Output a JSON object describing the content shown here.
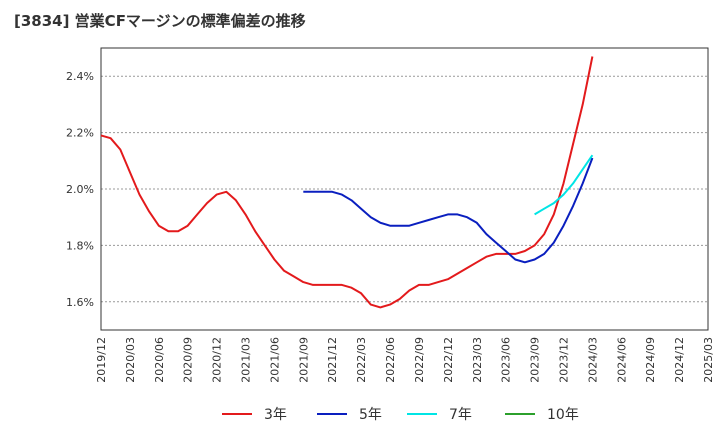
{
  "chart_data": {
    "type": "line",
    "title": "[3834]  営業CFマージンの標準偏差の推移",
    "xlabel": "",
    "ylabel": "",
    "ylim": [
      1.5,
      2.5
    ],
    "y_ticks": [
      "1.6%",
      "1.8%",
      "2.0%",
      "2.2%",
      "2.4%"
    ],
    "y_tick_values": [
      1.6,
      1.8,
      2.0,
      2.2,
      2.4
    ],
    "x_range": [
      "2019-12",
      "2025-03"
    ],
    "x_ticks": [
      "2019/12",
      "2020/03",
      "2020/06",
      "2020/09",
      "2020/12",
      "2021/03",
      "2021/06",
      "2021/09",
      "2021/12",
      "2022/03",
      "2022/06",
      "2022/09",
      "2022/12",
      "2023/03",
      "2023/06",
      "2023/09",
      "2023/12",
      "2024/03",
      "2024/06",
      "2024/09",
      "2024/12",
      "2025/03"
    ],
    "grid": true,
    "legend_position": "bottom",
    "series": [
      {
        "name": "3年",
        "color": "#e31a1c",
        "points": [
          [
            "2019-12",
            2.19
          ],
          [
            "2020-01",
            2.18
          ],
          [
            "2020-02",
            2.14
          ],
          [
            "2020-03",
            2.06
          ],
          [
            "2020-04",
            1.98
          ],
          [
            "2020-05",
            1.92
          ],
          [
            "2020-06",
            1.87
          ],
          [
            "2020-07",
            1.85
          ],
          [
            "2020-08",
            1.85
          ],
          [
            "2020-09",
            1.87
          ],
          [
            "2020-10",
            1.91
          ],
          [
            "2020-11",
            1.95
          ],
          [
            "2020-12",
            1.98
          ],
          [
            "2021-01",
            1.99
          ],
          [
            "2021-02",
            1.96
          ],
          [
            "2021-03",
            1.91
          ],
          [
            "2021-04",
            1.85
          ],
          [
            "2021-05",
            1.8
          ],
          [
            "2021-06",
            1.75
          ],
          [
            "2021-07",
            1.71
          ],
          [
            "2021-08",
            1.69
          ],
          [
            "2021-09",
            1.67
          ],
          [
            "2021-10",
            1.66
          ],
          [
            "2021-11",
            1.66
          ],
          [
            "2021-12",
            1.66
          ],
          [
            "2022-01",
            1.66
          ],
          [
            "2022-02",
            1.65
          ],
          [
            "2022-03",
            1.63
          ],
          [
            "2022-04",
            1.59
          ],
          [
            "2022-05",
            1.58
          ],
          [
            "2022-06",
            1.59
          ],
          [
            "2022-07",
            1.61
          ],
          [
            "2022-08",
            1.64
          ],
          [
            "2022-09",
            1.66
          ],
          [
            "2022-10",
            1.66
          ],
          [
            "2022-11",
            1.67
          ],
          [
            "2022-12",
            1.68
          ],
          [
            "2023-01",
            1.7
          ],
          [
            "2023-02",
            1.72
          ],
          [
            "2023-03",
            1.74
          ],
          [
            "2023-04",
            1.76
          ],
          [
            "2023-05",
            1.77
          ],
          [
            "2023-06",
            1.77
          ],
          [
            "2023-07",
            1.77
          ],
          [
            "2023-08",
            1.78
          ],
          [
            "2023-09",
            1.8
          ],
          [
            "2023-10",
            1.84
          ],
          [
            "2023-11",
            1.91
          ],
          [
            "2023-12",
            2.02
          ],
          [
            "2024-01",
            2.16
          ],
          [
            "2024-02",
            2.3
          ],
          [
            "2024-03",
            2.47
          ]
        ]
      },
      {
        "name": "5年",
        "color": "#0a1fbf",
        "points": [
          [
            "2021-09",
            1.99
          ],
          [
            "2021-10",
            1.99
          ],
          [
            "2021-11",
            1.99
          ],
          [
            "2021-12",
            1.99
          ],
          [
            "2022-01",
            1.98
          ],
          [
            "2022-02",
            1.96
          ],
          [
            "2022-03",
            1.93
          ],
          [
            "2022-04",
            1.9
          ],
          [
            "2022-05",
            1.88
          ],
          [
            "2022-06",
            1.87
          ],
          [
            "2022-07",
            1.87
          ],
          [
            "2022-08",
            1.87
          ],
          [
            "2022-09",
            1.88
          ],
          [
            "2022-10",
            1.89
          ],
          [
            "2022-11",
            1.9
          ],
          [
            "2022-12",
            1.91
          ],
          [
            "2023-01",
            1.91
          ],
          [
            "2023-02",
            1.9
          ],
          [
            "2023-03",
            1.88
          ],
          [
            "2023-04",
            1.84
          ],
          [
            "2023-05",
            1.81
          ],
          [
            "2023-06",
            1.78
          ],
          [
            "2023-07",
            1.75
          ],
          [
            "2023-08",
            1.74
          ],
          [
            "2023-09",
            1.75
          ],
          [
            "2023-10",
            1.77
          ],
          [
            "2023-11",
            1.81
          ],
          [
            "2023-12",
            1.87
          ],
          [
            "2024-01",
            1.94
          ],
          [
            "2024-02",
            2.02
          ],
          [
            "2024-03",
            2.11
          ]
        ]
      },
      {
        "name": "7年",
        "color": "#00e5e5",
        "points": [
          [
            "2023-09",
            1.91
          ],
          [
            "2023-10",
            1.93
          ],
          [
            "2023-11",
            1.95
          ],
          [
            "2023-12",
            1.98
          ],
          [
            "2024-01",
            2.02
          ],
          [
            "2024-02",
            2.07
          ],
          [
            "2024-03",
            2.12
          ]
        ]
      },
      {
        "name": "10年",
        "color": "#2ca02c",
        "points": []
      }
    ]
  }
}
